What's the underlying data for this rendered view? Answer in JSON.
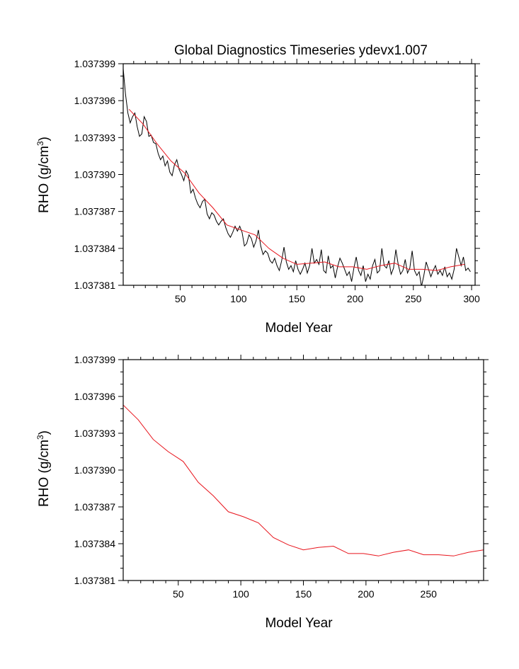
{
  "chart_data": [
    {
      "type": "line",
      "title": "Global Diagnostics Timeseries ydevx1.007",
      "xlabel": "Model Year",
      "ylabel_main": "RHO (g/cm",
      "ylabel_sup": "3",
      "ylabel_close": ")",
      "xlim": [
        1,
        303
      ],
      "ylim": [
        1.037381,
        1.037399
      ],
      "xticks": [
        50,
        100,
        150,
        200,
        250,
        300
      ],
      "yticks": [
        1.037381,
        1.037384,
        1.037387,
        1.03739,
        1.037393,
        1.037396,
        1.037399
      ],
      "ytick_labels": [
        "1.037381",
        "1.037384",
        "1.037387",
        "1.037390",
        "1.037393",
        "1.037396",
        "1.037399"
      ],
      "series": [
        {
          "color": "#000000",
          "x_start": 1,
          "x_step": 2,
          "values": [
            1.0373986,
            1.0373965,
            1.037395,
            1.0373942,
            1.0373947,
            1.037395,
            1.0373939,
            1.0373931,
            1.0373933,
            1.0373947,
            1.0373943,
            1.0373931,
            1.0373932,
            1.0373926,
            1.0373925,
            1.0373917,
            1.0373912,
            1.0373915,
            1.0373907,
            1.0373911,
            1.0373902,
            1.0373899,
            1.0373908,
            1.0373912,
            1.0373904,
            1.03739,
            1.0373895,
            1.0373903,
            1.0373899,
            1.0373885,
            1.0373888,
            1.0373881,
            1.0373876,
            1.0373873,
            1.0373878,
            1.037388,
            1.0373868,
            1.0373864,
            1.0373869,
            1.0373867,
            1.0373862,
            1.0373859,
            1.0373862,
            1.0373864,
            1.0373857,
            1.0373852,
            1.0373849,
            1.0373853,
            1.0373858,
            1.0373854,
            1.0373858,
            1.0373853,
            1.0373842,
            1.0373844,
            1.0373851,
            1.0373848,
            1.0373841,
            1.0373846,
            1.0373855,
            1.0373842,
            1.0373835,
            1.0373838,
            1.0373836,
            1.037383,
            1.0373828,
            1.0373832,
            1.0373826,
            1.0373822,
            1.037383,
            1.0373841,
            1.0373829,
            1.0373823,
            1.0373826,
            1.0373821,
            1.037383,
            1.0373823,
            1.0373819,
            1.0373823,
            1.0373828,
            1.037382,
            1.0373826,
            1.037384,
            1.0373828,
            1.0373831,
            1.0373827,
            1.0373839,
            1.0373822,
            1.037382,
            1.0373834,
            1.0373824,
            1.0373826,
            1.0373816,
            1.0373825,
            1.0373832,
            1.0373828,
            1.0373823,
            1.0373818,
            1.0373821,
            1.0373813,
            1.0373824,
            1.0373833,
            1.0373822,
            1.0373818,
            1.0373826,
            1.0373813,
            1.0373819,
            1.0373815,
            1.0373826,
            1.0373831,
            1.037382,
            1.0373822,
            1.037384,
            1.0373826,
            1.0373824,
            1.037383,
            1.0373819,
            1.0373824,
            1.0373839,
            1.0373827,
            1.0373819,
            1.0373822,
            1.0373831,
            1.037382,
            1.0373824,
            1.0373838,
            1.0373822,
            1.0373818,
            1.0373821,
            1.0373809,
            1.0373818,
            1.0373829,
            1.0373823,
            1.0373817,
            1.0373822,
            1.0373826,
            1.0373819,
            1.0373822,
            1.0373818,
            1.0373825,
            1.0373817,
            1.037382,
            1.0373815,
            1.0373823,
            1.037384,
            1.0373833,
            1.0373826,
            1.0373833,
            1.0373822,
            1.0373824,
            1.0373821
          ]
        },
        {
          "color": "#e8141c",
          "x": [
            6,
            18,
            30,
            42,
            54,
            66,
            78,
            90,
            102,
            114,
            126,
            138,
            150,
            162,
            174,
            186,
            198,
            210,
            222,
            234,
            246,
            258,
            270,
            282,
            294
          ],
          "values": [
            1.0373953,
            1.0373941,
            1.0373925,
            1.0373911,
            1.0373901,
            1.0373885,
            1.0373873,
            1.0373859,
            1.0373855,
            1.0373851,
            1.037384,
            1.0373832,
            1.0373827,
            1.0373828,
            1.0373829,
            1.0373825,
            1.0373825,
            1.0373823,
            1.0373826,
            1.0373828,
            1.0373823,
            1.0373823,
            1.0373822,
            1.0373825,
            1.0373827
          ]
        }
      ]
    },
    {
      "type": "line",
      "title": "",
      "xlabel": "Model Year",
      "ylabel_main": "RHO (g/cm",
      "ylabel_sup": "3",
      "ylabel_close": ")",
      "xlim": [
        6,
        294
      ],
      "ylim": [
        1.037381,
        1.037399
      ],
      "xticks": [
        50,
        100,
        150,
        200,
        250
      ],
      "yticks": [
        1.037381,
        1.037384,
        1.037387,
        1.03739,
        1.037393,
        1.037396,
        1.037399
      ],
      "ytick_labels": [
        "1.037381",
        "1.037384",
        "1.037387",
        "1.037390",
        "1.037393",
        "1.037396",
        "1.037399"
      ],
      "series": [
        {
          "color": "#e8141c",
          "x": [
            6,
            18,
            30,
            42,
            54,
            66,
            78,
            90,
            102,
            114,
            126,
            138,
            150,
            162,
            174,
            186,
            198,
            210,
            222,
            234,
            246,
            258,
            270,
            282,
            294
          ],
          "values": [
            1.0373953,
            1.0373941,
            1.0373925,
            1.0373915,
            1.0373907,
            1.037389,
            1.0373879,
            1.0373866,
            1.0373862,
            1.0373857,
            1.0373845,
            1.0373839,
            1.0373835,
            1.0373837,
            1.0373838,
            1.0373832,
            1.0373832,
            1.037383,
            1.0373833,
            1.0373835,
            1.0373831,
            1.0373831,
            1.037383,
            1.0373833,
            1.0373835
          ]
        }
      ]
    }
  ]
}
